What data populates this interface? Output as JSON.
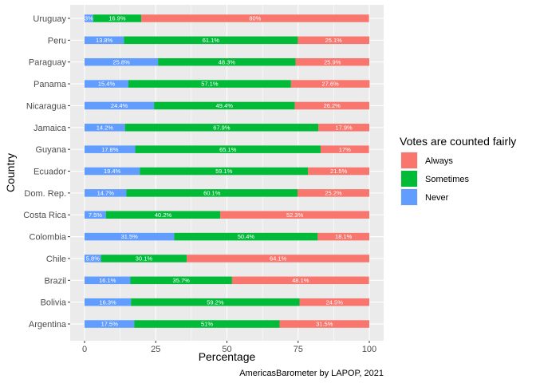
{
  "chart_data": {
    "type": "bar",
    "orientation": "horizontal",
    "stacked": true,
    "xlabel": "Percentage",
    "ylabel": "Country",
    "xlim": [
      0,
      100
    ],
    "xticks": [
      "0",
      "25",
      "50",
      "75",
      "100"
    ],
    "grid": true,
    "legend_position": "right",
    "legend_title": "Votes are counted fairly",
    "caption": "AmericasBarometer by LAPOP, 2021",
    "categories": [
      "Argentina",
      "Bolivia",
      "Brazil",
      "Chile",
      "Colombia",
      "Costa Rica",
      "Dom. Rep.",
      "Ecuador",
      "Guyana",
      "Jamaica",
      "Nicaragua",
      "Panama",
      "Paraguay",
      "Peru",
      "Uruguay"
    ],
    "series": [
      {
        "name": "Never",
        "color": "#619CFF",
        "values": [
          17.5,
          16.3,
          16.1,
          5.8,
          31.5,
          7.5,
          14.7,
          19.4,
          17.8,
          14.2,
          24.4,
          15.4,
          25.8,
          13.8,
          3
        ],
        "labels": [
          "17.5%",
          "16.3%",
          "16.1%",
          "5.8%",
          "31.5%",
          "7.5%",
          "14.7%",
          "19.4%",
          "17.8%",
          "14.2%",
          "24.4%",
          "15.4%",
          "25.8%",
          "13.8%",
          "3%"
        ]
      },
      {
        "name": "Sometimes",
        "color": "#00BA38",
        "values": [
          51,
          59.2,
          35.7,
          30.1,
          50.4,
          40.2,
          60.1,
          59.1,
          65.1,
          67.9,
          49.4,
          57.1,
          48.3,
          61.1,
          16.9
        ],
        "labels": [
          "51%",
          "59.2%",
          "35.7%",
          "30.1%",
          "50.4%",
          "40.2%",
          "60.1%",
          "59.1%",
          "65.1%",
          "67.9%",
          "49.4%",
          "57.1%",
          "48.3%",
          "61.1%",
          "16.9%"
        ]
      },
      {
        "name": "Always",
        "color": "#F8766D",
        "values": [
          31.5,
          24.5,
          48.1,
          64.1,
          18.1,
          52.3,
          25.2,
          21.5,
          17,
          17.9,
          26.2,
          27.6,
          25.9,
          25.1,
          80
        ],
        "labels": [
          "31.5%",
          "24.5%",
          "48.1%",
          "64.1%",
          "18.1%",
          "52.3%",
          "25.2%",
          "21.5%",
          "17%",
          "17.9%",
          "26.2%",
          "27.6%",
          "25.9%",
          "25.1%",
          "80%"
        ]
      }
    ],
    "legend_order": [
      "Always",
      "Sometimes",
      "Never"
    ],
    "panel_background": "#EBEBEB",
    "grid_color": "#FFFFFF"
  }
}
